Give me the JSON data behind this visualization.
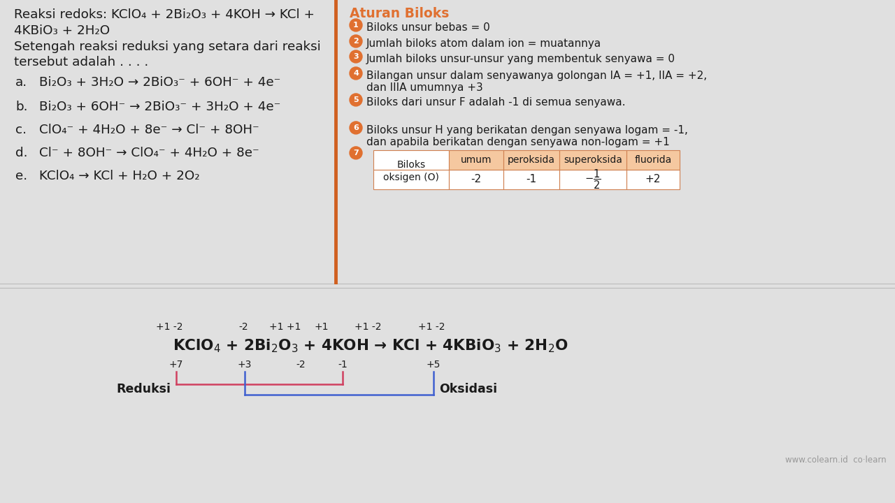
{
  "bg_color": "#e0e0e0",
  "orange": "#e07030",
  "text_dark": "#1a1a1a",
  "table_header_bg": "#f5c8a0",
  "table_border": "#d08050",
  "divider_color": "#d06020",
  "question_lines": [
    "Reaksi redoks: KClO₄ + 2Bi₂O₃ + 4KOH → KCl +",
    "4KBiO₃ + 2H₂O",
    "Setengah reaksi reduksi yang setara dari reaksi",
    "tersebut adalah . . . ."
  ],
  "options": [
    [
      "a.",
      "Bi₂O₃ + 3H₂O → 2BiO₃⁻ + 6OH⁻ + 4e⁻"
    ],
    [
      "b.",
      "Bi₂O₃ + 6OH⁻ → 2BiO₃⁻ + 3H₂O + 4e⁻"
    ],
    [
      "c.",
      "ClO₄⁻ + 4H₂O + 8e⁻ → Cl⁻ + 8OH⁻"
    ],
    [
      "d.",
      "Cl⁻ + 8OH⁻ → ClO₄⁻ + 4H₂O + 8e⁻"
    ],
    [
      "e.",
      "KClO₄ → KCl + H₂O + 2O₂"
    ]
  ],
  "aturan_title": "Aturan Biloks",
  "rules": [
    "Biloks unsur bebas = 0",
    "Jumlah biloks atom dalam ion = muatannya",
    "Jumlah biloks unsur-unsur yang membentuk senyawa = 0",
    "Bilangan unsur dalam senyawanya golongan IA = +1, IIA = +2,\ndan IIIA umumnya +3",
    "Biloks dari unsur F adalah -1 di semua senyawa.",
    "Biloks unsur H yang berikatan dengan senyawa logam = -1,\ndan apabila berikatan dengan senyawa non-logam = +1"
  ],
  "table_values": [
    "-2",
    "-1",
    "-1/2",
    "+2"
  ],
  "colearn": "www.colearn.id  co·learn"
}
